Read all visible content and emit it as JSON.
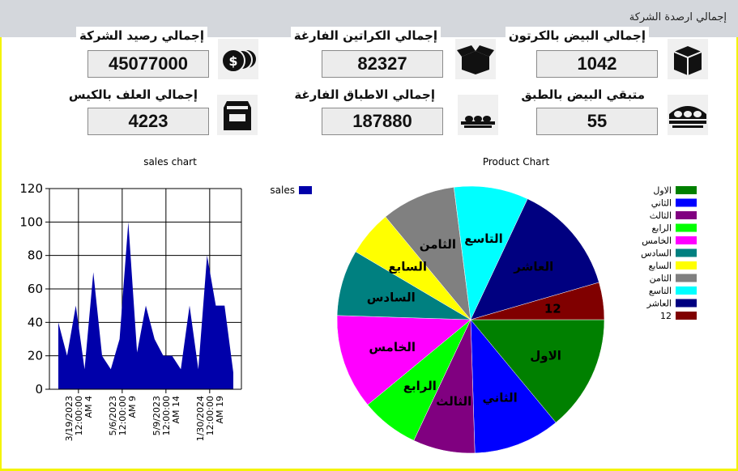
{
  "window": {
    "title": "إجمالي ارصدة الشركة"
  },
  "cards": [
    {
      "label": "إجمالي رصيد الشركة",
      "value": "45077000",
      "icon": "coins-icon"
    },
    {
      "label": "إجمالي الكراتين الفارغة",
      "value": "82327",
      "icon": "empty-box-icon"
    },
    {
      "label": "إجمالي البيض بالكرتون",
      "value": "1042",
      "icon": "box-icon"
    },
    {
      "label": "إجمالي العلف بالكيس",
      "value": "4223",
      "icon": "feed-bag-icon"
    },
    {
      "label": "إجمالي الاطباق الفارغة",
      "value": "187880",
      "icon": "egg-tray-icon"
    },
    {
      "label": "متبقي البيض بالطبق",
      "value": "55",
      "icon": "egg-tray-full-icon"
    }
  ],
  "chart_data": [
    {
      "type": "area",
      "title": "sales chart",
      "xlabel": "",
      "ylabel": "",
      "ylim": [
        0,
        120
      ],
      "yticks": [
        0,
        20,
        40,
        60,
        80,
        100,
        120
      ],
      "xtick_labels": [
        [
          "3/19/2023",
          "12:00:00",
          "AM 4"
        ],
        [
          "5/6/2023",
          "12:00:00",
          "AM 9"
        ],
        [
          "5/9/2023",
          "12:00:00",
          "AM 14"
        ],
        [
          "1/30/2024",
          "12:00:00",
          "AM 19"
        ]
      ],
      "series": [
        {
          "name": "sales",
          "color": "#0000aa",
          "values": [
            40,
            20,
            50,
            12,
            70,
            20,
            12,
            30,
            100,
            22,
            50,
            30,
            20,
            20,
            12,
            50,
            12,
            80,
            50,
            50,
            10
          ]
        }
      ],
      "legend": "top-right",
      "grid": true
    },
    {
      "type": "pie",
      "title": "Product Chart",
      "legend": "right",
      "slices": [
        {
          "label": "الاول",
          "value": 14.0,
          "color": "#008000"
        },
        {
          "label": "الثاني",
          "value": 10.5,
          "color": "#0000ff"
        },
        {
          "label": "الثالث",
          "value": 7.5,
          "color": "#800080"
        },
        {
          "label": "الرابع",
          "value": 7.0,
          "color": "#00ff00"
        },
        {
          "label": "الخامس",
          "value": 11.5,
          "color": "#ff00ff"
        },
        {
          "label": "السادس",
          "value": 8.0,
          "color": "#008080"
        },
        {
          "label": "السابع",
          "value": 5.5,
          "color": "#ffff00"
        },
        {
          "label": "الثامن",
          "value": 9.0,
          "color": "#808080"
        },
        {
          "label": "التاسع",
          "value": 9.0,
          "color": "#00ffff"
        },
        {
          "label": "العاشر",
          "value": 13.5,
          "color": "#000080"
        },
        {
          "label": "12",
          "value": 4.5,
          "color": "#800000"
        }
      ]
    }
  ]
}
